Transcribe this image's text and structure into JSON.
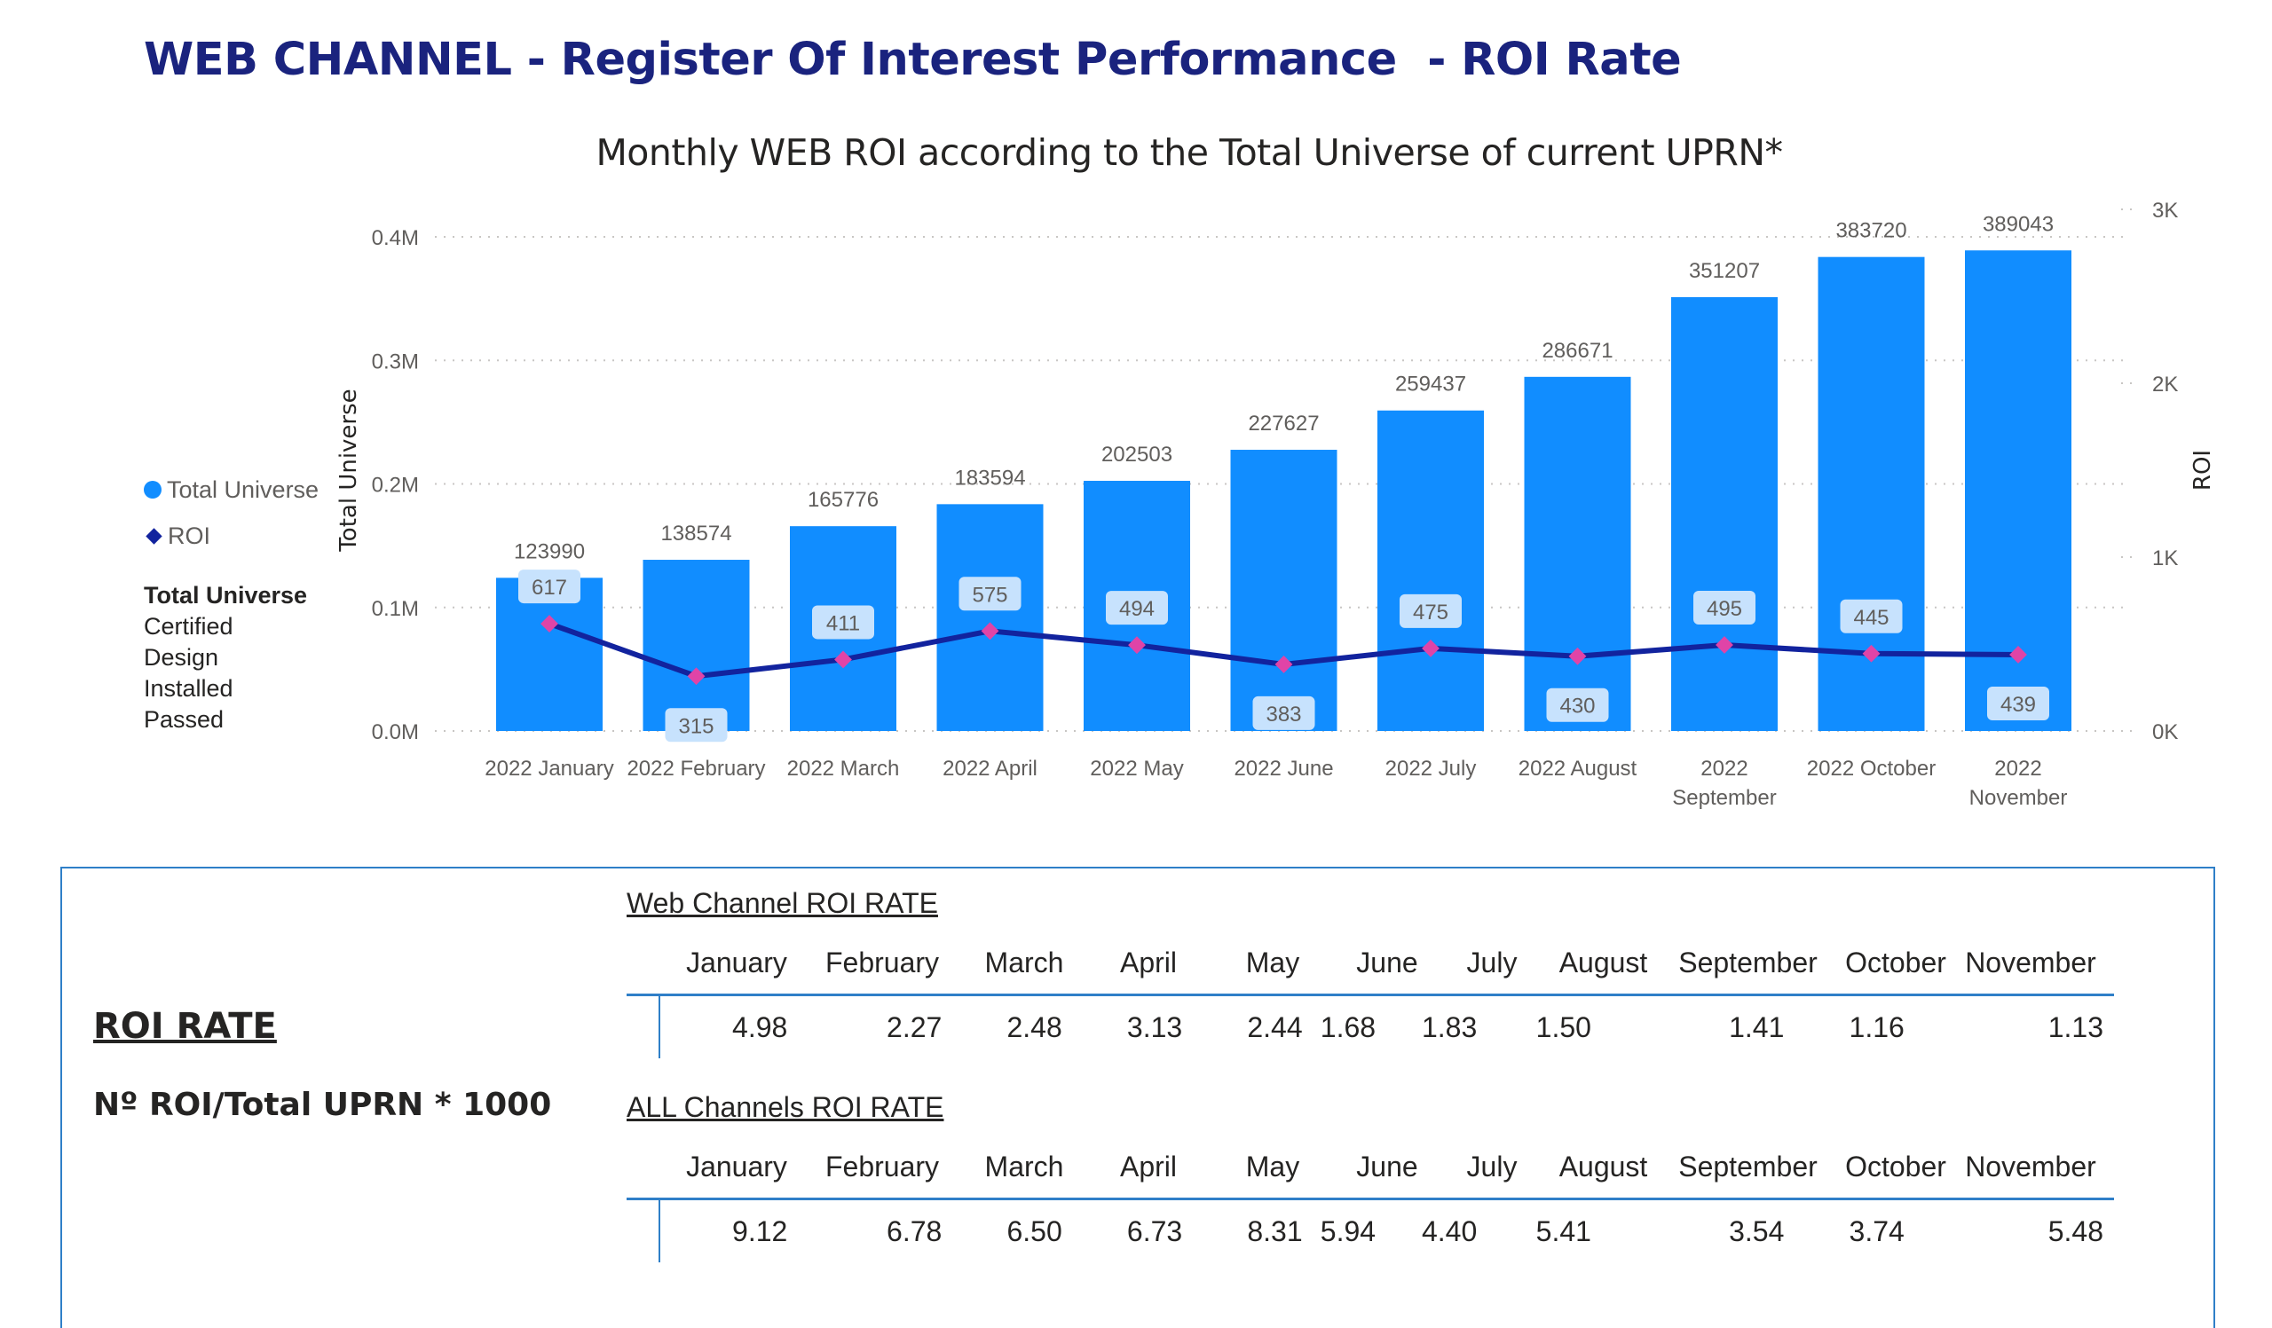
{
  "page_title": "WEB CHANNEL - Register Of Interest Performance  - ROI Rate",
  "legend": {
    "items": [
      {
        "label": "Total Universe",
        "color": "#118dff",
        "shape": "circle"
      },
      {
        "label": "ROI",
        "color": "#12239e",
        "shape": "diamond"
      }
    ]
  },
  "filter": {
    "title": "Total Universe",
    "items": [
      "Certified",
      "Design",
      "Installed",
      "Passed"
    ]
  },
  "chart_data": {
    "type": "bar",
    "title": "Monthly WEB ROI according to the Total Universe of current UPRN*",
    "categories": [
      "2022 January",
      "2022 February",
      "2022 March",
      "2022 April",
      "2022 May",
      "2022 June",
      "2022 July",
      "2022 August",
      "2022 September",
      "2022 October",
      "2022 November"
    ],
    "series": [
      {
        "name": "Total Universe",
        "type": "bar",
        "axis": "left",
        "color": "#118dff",
        "values": [
          123990,
          138574,
          165776,
          183594,
          202503,
          227627,
          259437,
          286671,
          351207,
          383720,
          389043
        ]
      },
      {
        "name": "ROI",
        "type": "line",
        "axis": "right",
        "color": "#12239e",
        "marker_color": "#e044a7",
        "values": [
          617,
          315,
          411,
          575,
          494,
          383,
          475,
          430,
          495,
          445,
          439
        ]
      }
    ],
    "xlabel": "",
    "ylabel": "Total Universe",
    "y2label": "ROI",
    "ylim": [
      0,
      400000
    ],
    "y2lim": [
      0,
      3000
    ],
    "yticks": [
      "0.0M",
      "0.1M",
      "0.2M",
      "0.3M",
      "0.4M"
    ],
    "y2ticks": [
      "0K",
      "1K",
      "2K",
      "3K"
    ],
    "grid": true,
    "legend": "left"
  },
  "panel": {
    "heading": "ROI RATE",
    "formula": "Nº ROI/Total UPRN * 1000",
    "tables": [
      {
        "title": "Web Channel ROI RATE",
        "columns": [
          "January",
          "February",
          "March",
          "April",
          "May",
          "June",
          "July",
          "August",
          "September",
          "October",
          "November"
        ],
        "values": [
          "4.98",
          "2.27",
          "2.48",
          "3.13",
          "2.44",
          "1.68",
          "1.83",
          "1.50",
          "1.41",
          "1.16",
          "1.13"
        ]
      },
      {
        "title": "ALL Channels ROI RATE",
        "columns": [
          "January",
          "February",
          "March",
          "April",
          "May",
          "June",
          "July",
          "August",
          "September",
          "October",
          "November"
        ],
        "values": [
          "9.12",
          "6.78",
          "6.50",
          "6.73",
          "8.31",
          "5.94",
          "4.40",
          "5.41",
          "3.54",
          "3.74",
          "5.48"
        ]
      }
    ]
  }
}
